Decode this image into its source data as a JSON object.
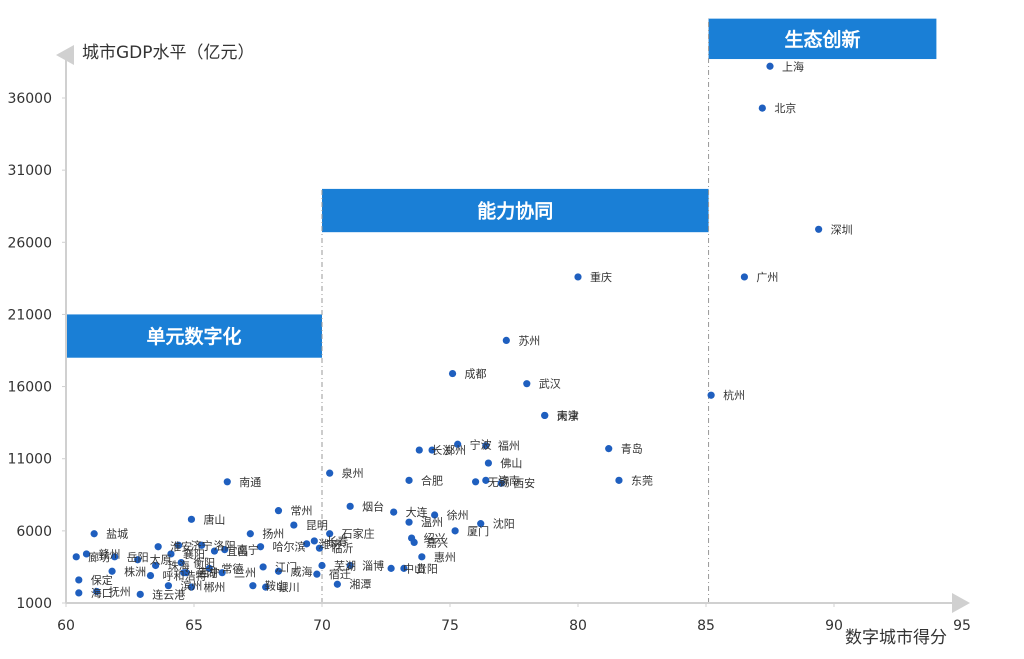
{
  "chart_data": {
    "type": "scatter",
    "xlabel": "数字城市得分",
    "ylabel": "城市GDP水平（亿元）",
    "xlim": [
      60,
      95
    ],
    "ylim": [
      1000,
      38500
    ],
    "x_ticks": [
      "60",
      "65",
      "70",
      "75",
      "80",
      "85",
      "90",
      "95"
    ],
    "y_ticks": [
      "1000",
      "6000",
      "11000",
      "16000",
      "21000",
      "26000",
      "31000",
      "36000"
    ],
    "x_tick_values": [
      60,
      65,
      70,
      75,
      80,
      85,
      90,
      95
    ],
    "y_tick_values": [
      1000,
      6000,
      11000,
      16000,
      21000,
      26000,
      31000,
      36000
    ],
    "point_color": "#1f5fbf",
    "band_color": "#1a7fd6",
    "bands": [
      {
        "label": "单元数字化",
        "x_start": 60,
        "x_end": 70,
        "y_bottom": 18000,
        "y_top": 21000
      },
      {
        "label": "能力协同",
        "x_start": 70,
        "x_end": 85.1,
        "y_bottom": 26700,
        "y_top": 29700
      },
      {
        "label": "生态创新",
        "x_start": 85.1,
        "x_end": 94,
        "y_bottom": 38700,
        "y_top": 41500
      }
    ],
    "dividers": [
      70,
      85.1
    ],
    "points": [
      {
        "name": "上海",
        "x": 87.5,
        "y": 38200
      },
      {
        "name": "北京",
        "x": 87.2,
        "y": 35300
      },
      {
        "name": "深圳",
        "x": 89.4,
        "y": 26900
      },
      {
        "name": "广州",
        "x": 86.5,
        "y": 23600
      },
      {
        "name": "杭州",
        "x": 85.2,
        "y": 15400
      },
      {
        "name": "重庆",
        "x": 80.0,
        "y": 23600
      },
      {
        "name": "苏州",
        "x": 77.2,
        "y": 19200
      },
      {
        "name": "成都",
        "x": 75.1,
        "y": 16900
      },
      {
        "name": "武汉",
        "x": 78.0,
        "y": 16200
      },
      {
        "name": "南京",
        "x": 78.7,
        "y": 14000
      },
      {
        "name": "天津",
        "x": 78.7,
        "y": 14000
      },
      {
        "name": "青岛",
        "x": 81.2,
        "y": 11700
      },
      {
        "name": "东莞",
        "x": 81.6,
        "y": 9500
      },
      {
        "name": "长沙",
        "x": 73.8,
        "y": 11600
      },
      {
        "name": "郑州",
        "x": 74.3,
        "y": 11600
      },
      {
        "name": "宁波",
        "x": 75.3,
        "y": 12000
      },
      {
        "name": "福州",
        "x": 76.4,
        "y": 11900
      },
      {
        "name": "佛山",
        "x": 76.5,
        "y": 10700
      },
      {
        "name": "济南",
        "x": 76.4,
        "y": 9500
      },
      {
        "name": "无锡",
        "x": 76.0,
        "y": 9400
      },
      {
        "name": "西安",
        "x": 77.0,
        "y": 9300
      },
      {
        "name": "合肥",
        "x": 73.4,
        "y": 9500
      },
      {
        "name": "泉州",
        "x": 70.3,
        "y": 10000
      },
      {
        "name": "烟台",
        "x": 71.1,
        "y": 7700
      },
      {
        "name": "大连",
        "x": 72.8,
        "y": 7300
      },
      {
        "name": "徐州",
        "x": 74.4,
        "y": 7100
      },
      {
        "name": "温州",
        "x": 73.4,
        "y": 6600
      },
      {
        "name": "厦门",
        "x": 75.2,
        "y": 6000
      },
      {
        "name": "沈阳",
        "x": 76.2,
        "y": 6500
      },
      {
        "name": "绍兴",
        "x": 73.5,
        "y": 5500
      },
      {
        "name": "嘉兴",
        "x": 73.6,
        "y": 5200
      },
      {
        "name": "惠州",
        "x": 73.9,
        "y": 4200
      },
      {
        "name": "南通",
        "x": 66.3,
        "y": 9400
      },
      {
        "name": "常州",
        "x": 68.3,
        "y": 7400
      },
      {
        "name": "唐山",
        "x": 64.9,
        "y": 6800
      },
      {
        "name": "扬州",
        "x": 67.2,
        "y": 5800
      },
      {
        "name": "昆明",
        "x": 68.9,
        "y": 6400
      },
      {
        "name": "长春",
        "x": 69.7,
        "y": 5300
      },
      {
        "name": "石家庄",
        "x": 70.3,
        "y": 5800
      },
      {
        "name": "潍坊",
        "x": 69.4,
        "y": 5100
      },
      {
        "name": "临沂",
        "x": 69.9,
        "y": 4800
      },
      {
        "name": "哈尔滨",
        "x": 67.6,
        "y": 4900
      },
      {
        "name": "南宁",
        "x": 66.2,
        "y": 4700
      },
      {
        "name": "宜昌",
        "x": 65.8,
        "y": 4600
      },
      {
        "name": "洛阳",
        "x": 65.3,
        "y": 5000
      },
      {
        "name": "济宁",
        "x": 64.4,
        "y": 5000
      },
      {
        "name": "淮安",
        "x": 63.6,
        "y": 4900
      },
      {
        "name": "襄阳",
        "x": 64.1,
        "y": 4400
      },
      {
        "name": "衡阳",
        "x": 64.5,
        "y": 3800
      },
      {
        "name": "太原",
        "x": 62.8,
        "y": 4000
      },
      {
        "name": "珠海",
        "x": 63.5,
        "y": 3600
      },
      {
        "name": "盐城",
        "x": 61.1,
        "y": 5800
      },
      {
        "name": "赣州",
        "x": 60.8,
        "y": 4400
      },
      {
        "name": "廊坊",
        "x": 60.4,
        "y": 4200
      },
      {
        "name": "岳阳",
        "x": 61.9,
        "y": 4200
      },
      {
        "name": "株洲",
        "x": 61.8,
        "y": 3200
      },
      {
        "name": "保定",
        "x": 60.5,
        "y": 2600
      },
      {
        "name": "海口",
        "x": 60.5,
        "y": 1700
      },
      {
        "name": "连云港",
        "x": 62.9,
        "y": 1600
      },
      {
        "name": "抚州",
        "x": 61.2,
        "y": 1800
      },
      {
        "name": "呼和浩特",
        "x": 63.3,
        "y": 2900
      },
      {
        "name": "芜湖",
        "x": 64.6,
        "y": 3100
      },
      {
        "name": "滨州",
        "x": 64.0,
        "y": 2200
      },
      {
        "name": "郴州",
        "x": 64.9,
        "y": 2100
      },
      {
        "name": "西宁",
        "x": 64.7,
        "y": 3100
      },
      {
        "name": "常德",
        "x": 65.6,
        "y": 3400
      },
      {
        "name": "兰州",
        "x": 66.1,
        "y": 3100
      },
      {
        "name": "江门",
        "x": 67.7,
        "y": 3500
      },
      {
        "name": "威海",
        "x": 68.3,
        "y": 3200
      },
      {
        "name": "芜湖",
        "x": 70.0,
        "y": 3600
      },
      {
        "name": "淄博",
        "x": 71.1,
        "y": 3600
      },
      {
        "name": "中山",
        "x": 72.7,
        "y": 3400
      },
      {
        "name": "贵阳",
        "x": 73.2,
        "y": 3400
      },
      {
        "name": "宿迁",
        "x": 69.8,
        "y": 3000
      },
      {
        "name": "湘潭",
        "x": 70.6,
        "y": 2300
      },
      {
        "name": "银川",
        "x": 67.8,
        "y": 2100
      },
      {
        "name": "鞍山",
        "x": 67.3,
        "y": 2200
      }
    ]
  }
}
